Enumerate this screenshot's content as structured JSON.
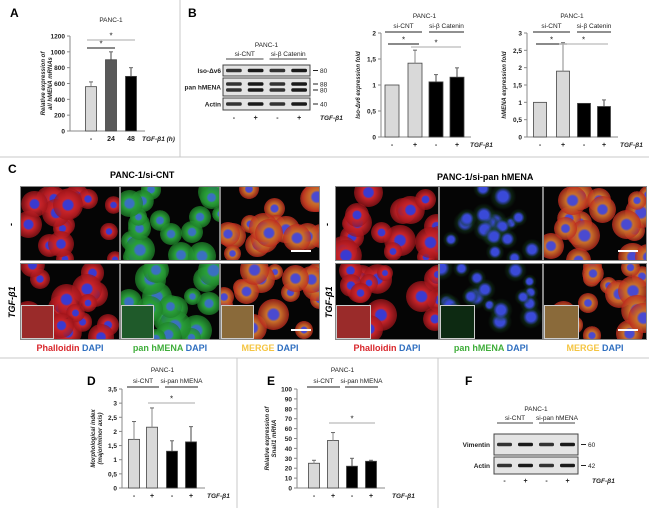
{
  "panels": {
    "A": "A",
    "B": "B",
    "C": "C",
    "D": "D",
    "E": "E",
    "F": "F"
  },
  "chart_data": [
    {
      "id": "A",
      "type": "bar",
      "title": "PANC-1",
      "ylabel": "Relative expression of all hMENA mRNAs",
      "categories": [
        "-",
        "24",
        "48"
      ],
      "xlabel": "TGF-β1 (h)",
      "values": [
        560,
        900,
        690
      ],
      "errors": [
        620,
        1000,
        800
      ],
      "colors": [
        "#d9d9d9",
        "#595959",
        "#000000"
      ],
      "ylim": [
        0,
        1200
      ],
      "yticks": [
        0,
        200,
        400,
        600,
        800,
        1000,
        1200
      ],
      "significance": [
        {
          "from": 0,
          "to": 1,
          "label": "*"
        },
        {
          "from": 0,
          "to": 2,
          "label": "*"
        }
      ]
    },
    {
      "id": "B1",
      "type": "bar",
      "title": "PANC-1",
      "groups": [
        "si-CNT",
        "si-β Catenin"
      ],
      "ylabel": "Iso-Δv6 expression fold",
      "categories": [
        "-",
        "+",
        "-",
        "+"
      ],
      "xlabel": "TGF-β1",
      "values": [
        1,
        1.42,
        1.06,
        1.15
      ],
      "errors": [
        1,
        1.67,
        1.2,
        1.33
      ],
      "colors": [
        "#d9d9d9",
        "#d9d9d9",
        "#000000",
        "#000000"
      ],
      "ylim": [
        0,
        2
      ],
      "yticks": [
        "0",
        "0,5",
        "1",
        "1,5",
        "2"
      ],
      "significance": [
        {
          "from": 0,
          "to": 1,
          "label": "*"
        },
        {
          "from": 1,
          "to": 3,
          "label": "*"
        }
      ]
    },
    {
      "id": "B2",
      "type": "bar",
      "title": "PANC-1",
      "groups": [
        "si-CNT",
        "si-β Catenin"
      ],
      "ylabel": "hMENA expression fold",
      "categories": [
        "-",
        "+",
        "-",
        "+"
      ],
      "xlabel": "TGF-β1",
      "values": [
        1,
        1.9,
        0.97,
        0.88
      ],
      "errors": [
        1,
        2.72,
        0.97,
        1.07
      ],
      "colors": [
        "#d9d9d9",
        "#d9d9d9",
        "#000000",
        "#000000"
      ],
      "ylim": [
        0,
        3
      ],
      "yticks": [
        "0",
        "0,5",
        "1",
        "1,5",
        "2",
        "2,5",
        "3"
      ],
      "significance": [
        {
          "from": 0,
          "to": 1,
          "label": "*"
        },
        {
          "from": 1,
          "to": 3,
          "label": "*"
        }
      ]
    },
    {
      "id": "D",
      "type": "bar",
      "title": "PANC-1",
      "groups": [
        "si-CNT",
        "si-pan hMENA"
      ],
      "ylabel": "Morphological index (major/minor axis)",
      "categories": [
        "-",
        "+",
        "-",
        "+"
      ],
      "xlabel": "TGF-β1",
      "values": [
        1.72,
        2.15,
        1.3,
        1.63
      ],
      "errors": [
        2.35,
        2.83,
        1.67,
        2.17
      ],
      "colors": [
        "#d9d9d9",
        "#d9d9d9",
        "#000000",
        "#000000"
      ],
      "ylim": [
        0,
        3.5
      ],
      "yticks": [
        "0",
        "0,5",
        "1",
        "1,5",
        "2",
        "2,5",
        "3",
        "3,5"
      ],
      "significance": [
        {
          "from": 1,
          "to": 3,
          "label": "*"
        }
      ]
    },
    {
      "id": "E",
      "type": "bar",
      "title": "PANC-1",
      "groups": [
        "si-CNT",
        "si-pan hMENA"
      ],
      "ylabel": "Relative expression of Snail1 mRNA",
      "categories": [
        "-",
        "+",
        "-",
        "+"
      ],
      "xlabel": "TGF-β1",
      "values": [
        25,
        48,
        22,
        27
      ],
      "errors": [
        28,
        56,
        30,
        28
      ],
      "colors": [
        "#d9d9d9",
        "#d9d9d9",
        "#000000",
        "#000000"
      ],
      "ylim": [
        0,
        100
      ],
      "yticks": [
        "0",
        "10",
        "20",
        "30",
        "40",
        "50",
        "60",
        "70",
        "80",
        "90",
        "100"
      ],
      "significance": [
        {
          "from": 1,
          "to": 3,
          "label": "*"
        }
      ]
    }
  ],
  "blots": {
    "B": {
      "title": "PANC-1",
      "groups": [
        "si-CNT",
        "si-β Catenin"
      ],
      "rows": [
        {
          "label": "Iso-Δv6",
          "markers": [
            "80"
          ]
        },
        {
          "label": "pan hMENA",
          "markers": [
            "88",
            "80"
          ]
        },
        {
          "label": "Actin",
          "markers": [
            "40"
          ]
        }
      ],
      "lanes": [
        "-",
        "+",
        "-",
        "+"
      ],
      "treatment": "TGF-β1"
    },
    "F": {
      "title": "PANC-1",
      "groups": [
        "si-CNT",
        "si-pan hMENA"
      ],
      "rows": [
        {
          "label": "Vimentin",
          "markers": [
            "60"
          ]
        },
        {
          "label": "Actin",
          "markers": [
            "42"
          ]
        }
      ],
      "lanes": [
        "-",
        "+",
        "-",
        "+"
      ],
      "treatment": "TGF-β1"
    }
  },
  "microscopy": {
    "left_title": "PANC-1/si-CNT",
    "right_title": "PANC-1/si-pan hMENA",
    "row_labels": [
      "-",
      "TGF-β1"
    ],
    "captions": [
      {
        "a": "Phalloidin",
        "a_color": "#d9262b",
        "b": "DAPI",
        "b_color": "#2f6fc0"
      },
      {
        "a": "pan hMENA",
        "a_color": "#3fae3a",
        "b": "DAPI",
        "b_color": "#2f6fc0"
      },
      {
        "a": "MERGE",
        "a_color": "#f5c542",
        "b": "DAPI",
        "b_color": "#2f6fc0"
      }
    ]
  }
}
